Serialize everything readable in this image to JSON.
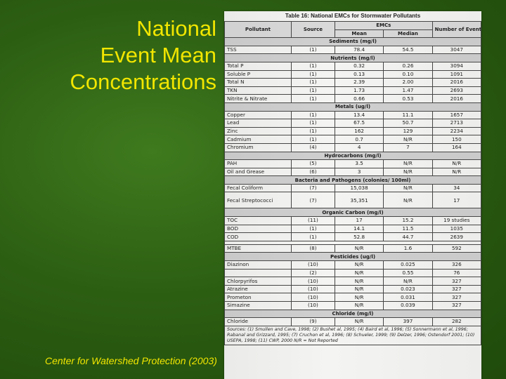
{
  "slide": {
    "title_lines": [
      "National",
      "Event Mean",
      "Concentrations"
    ],
    "credit": "Center for Watershed Protection (2003)"
  },
  "table": {
    "title": "Table 16: National EMCs for Stormwater Pollutants",
    "headers": {
      "pollutant": "Pollutant",
      "source": "Source",
      "emcs": "EMCs",
      "mean": "Mean",
      "median": "Median",
      "events": "Number of Events"
    },
    "sections": [
      {
        "title": "Sediments (mg/l)",
        "rows": [
          {
            "pollutant": "TSS",
            "source": "(1)",
            "mean": "78.4",
            "median": "54.5",
            "events": "3047"
          }
        ]
      },
      {
        "title": "Nutrients (mg/l)",
        "rows": [
          {
            "pollutant": "Total P",
            "source": "(1)",
            "mean": "0.32",
            "median": "0.26",
            "events": "3094"
          },
          {
            "pollutant": "Soluble P",
            "source": "(1)",
            "mean": "0.13",
            "median": "0.10",
            "events": "1091"
          },
          {
            "pollutant": "Total N",
            "source": "(1)",
            "mean": "2.39",
            "median": "2.00",
            "events": "2016"
          },
          {
            "pollutant": "TKN",
            "source": "(1)",
            "mean": "1.73",
            "median": "1.47",
            "events": "2693"
          },
          {
            "pollutant": "Nitrite & Nitrate",
            "source": "(1)",
            "mean": "0.66",
            "median": "0.53",
            "events": "2016"
          }
        ]
      },
      {
        "title": "Metals (ug/l)",
        "rows": [
          {
            "pollutant": "Copper",
            "source": "(1)",
            "mean": "13.4",
            "median": "11.1",
            "events": "1657"
          },
          {
            "pollutant": "Lead",
            "source": "(1)",
            "mean": "67.5",
            "median": "50.7",
            "events": "2713"
          },
          {
            "pollutant": "Zinc",
            "source": "(1)",
            "mean": "162",
            "median": "129",
            "events": "2234"
          },
          {
            "pollutant": "Cadmium",
            "source": "(1)",
            "mean": "0.7",
            "median": "N/R",
            "events": "150"
          },
          {
            "pollutant": "Chromium",
            "source": "(4)",
            "mean": "4",
            "median": "7",
            "events": "164"
          }
        ]
      },
      {
        "title": "Hydrocarbons (mg/l)",
        "rows": [
          {
            "pollutant": "PAH",
            "source": "(5)",
            "mean": "3.5",
            "median": "N/R",
            "events": "N/R"
          },
          {
            "pollutant": "Oil and Grease",
            "source": "(6)",
            "mean": "3",
            "median": "N/R",
            "events": "N/R"
          }
        ]
      },
      {
        "title": "Bacteria and Pathogens (colonies/ 100ml)",
        "rows": [
          {
            "pollutant": "Fecal Coliform",
            "source": "(7)",
            "mean": "15,038",
            "median": "N/R",
            "events": "34"
          },
          {
            "pollutant": "Fecal Streptococci",
            "source": "(7)",
            "mean": "35,351",
            "median": "N/R",
            "events": "17",
            "tall": true
          }
        ]
      },
      {
        "title": "Organic Carbon (mg/l)",
        "rows": [
          {
            "pollutant": "TOC",
            "source": "(11)",
            "mean": "17",
            "median": "15.2",
            "events": "19 studies"
          },
          {
            "pollutant": "BOD",
            "source": "(1)",
            "mean": "14.1",
            "median": "11.5",
            "events": "1035"
          },
          {
            "pollutant": "COD",
            "source": "(1)",
            "mean": "52.8",
            "median": "44.7",
            "events": "2639"
          }
        ],
        "trailing_rows": [
          {
            "pollutant": "MTBE",
            "source": "(8)",
            "mean": "N/R",
            "median": "1.6",
            "events": "592"
          }
        ]
      },
      {
        "title": "Pesticides (ug/l)",
        "rows": [
          {
            "pollutant": "Diazinon",
            "source": "(10)",
            "mean": "N/R",
            "median": "0.025",
            "events": "326"
          },
          {
            "pollutant": "",
            "source": "(2)",
            "mean": "N/R",
            "median": "0.55",
            "events": "76"
          },
          {
            "pollutant": "Chlorpyrifos",
            "source": "(10)",
            "mean": "N/R",
            "median": "N/R",
            "events": "327"
          },
          {
            "pollutant": "Atrazine",
            "source": "(10)",
            "mean": "N/R",
            "median": "0.023",
            "events": "327"
          },
          {
            "pollutant": "Prometon",
            "source": "(10)",
            "mean": "N/R",
            "median": "0.031",
            "events": "327"
          },
          {
            "pollutant": "Simazine",
            "source": "(10)",
            "mean": "N/R",
            "median": "0.039",
            "events": "327"
          }
        ]
      },
      {
        "title": "Chloride (mg/l)",
        "rows": [
          {
            "pollutant": "Chloride",
            "source": "(9)",
            "mean": "N/R",
            "median": "397",
            "events": "282"
          }
        ]
      }
    ],
    "notes": "Sources: (1) Smullen and Cave, 1998; (2) Bushet al, 1995; (4) Baird et al, 1996; (5) Sonnermann et al, 1996; Rabanal and Grizzard, 1995; (7) Cruchon et al, 1996; (8) Schueler, 1999; (9) Delzer, 1996; Ostendorf 2001; (10) USEPA, 1998; (11) CWP, 2000   N/R = Not Reported"
  }
}
